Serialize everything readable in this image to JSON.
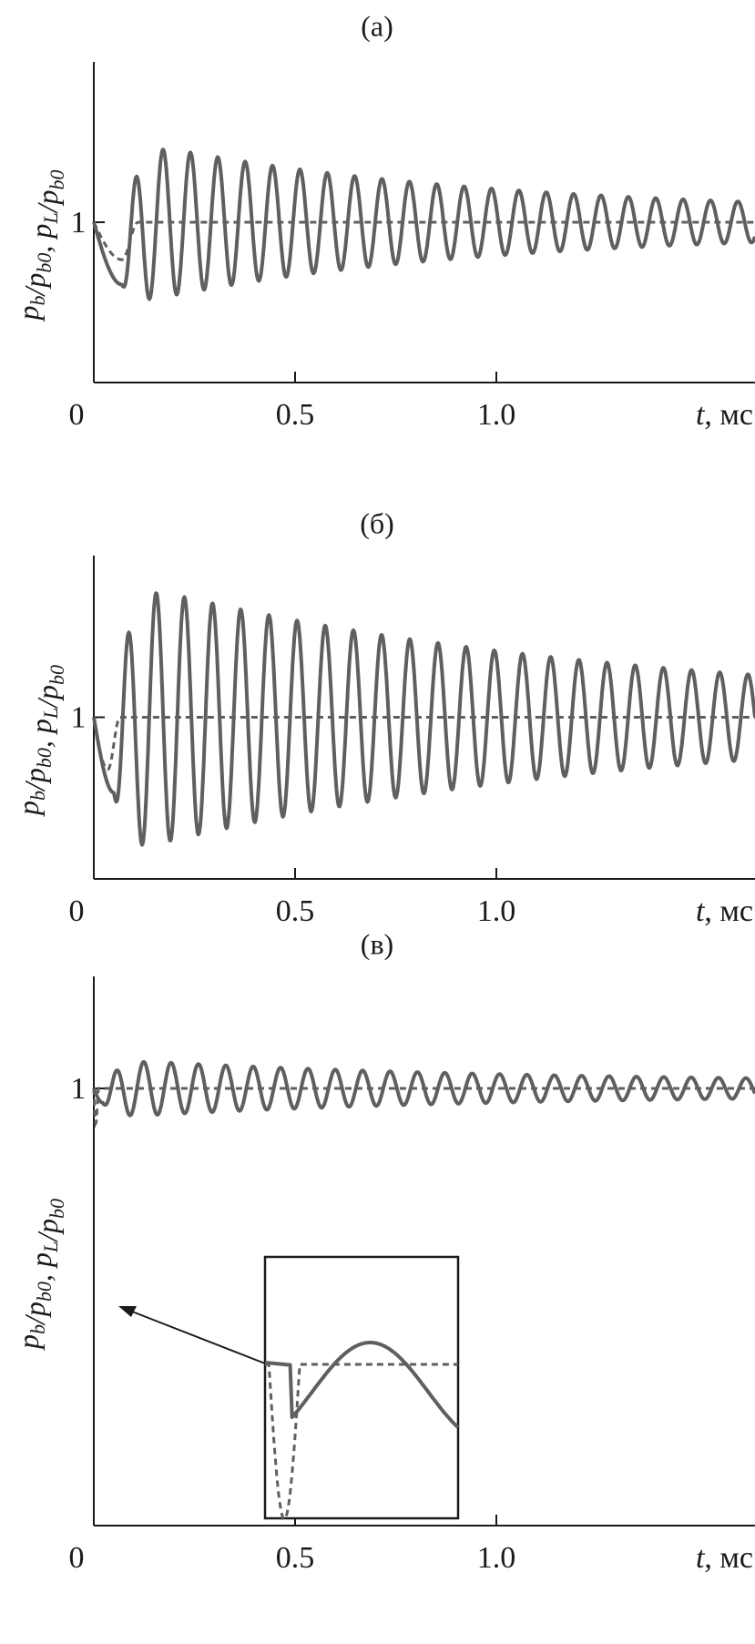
{
  "chart_data": [
    {
      "panel": "(а)",
      "type": "line",
      "xlabel_var": "t",
      "xlabel_unit": ", мс",
      "ylabel": "p_b/p_b0, p_L/p_b0",
      "xlim": [
        0,
        1.42
      ],
      "ylim": [
        0.1,
        1.9
      ],
      "x_ticks": [
        "0",
        "0.5",
        "1.0"
      ],
      "x_tick_values": [
        0,
        0.5,
        1.0
      ],
      "y_ticks": [
        "1"
      ],
      "y_tick_values": [
        1
      ],
      "series": [
        {
          "style": "solid",
          "t0": 0,
          "dip_time": 0.07,
          "dip_value": 0.65,
          "first_peak": 1.46,
          "period": 0.068,
          "decay": 1.2,
          "amp0": 0.42
        },
        {
          "style": "dashed",
          "dip_time": 0.07,
          "dip_value": 0.79,
          "settle_time": 0.11,
          "value_after": 1.0
        }
      ]
    },
    {
      "panel": "(б)",
      "type": "line",
      "xlabel_var": "t",
      "xlabel_unit": ", мс",
      "ylabel": "p_b/p_b0, p_L/p_b0",
      "xlim": [
        0,
        1.42
      ],
      "ylim": [
        0.1,
        1.9
      ],
      "x_ticks": [
        "0",
        "0.5",
        "1.0"
      ],
      "x_tick_values": [
        0,
        0.5,
        1.0
      ],
      "y_ticks": [
        "1"
      ],
      "y_tick_values": [
        1
      ],
      "series": [
        {
          "style": "solid",
          "dip_time": 0.05,
          "dip_value": 0.58,
          "first_peak": 1.71,
          "period": 0.07,
          "decay": 0.85,
          "amp0": 0.72
        },
        {
          "style": "dashed",
          "dip_time": 0.035,
          "dip_value": 0.71,
          "settle_time": 0.065,
          "value_after": 1.0
        }
      ]
    },
    {
      "panel": "(в)",
      "type": "line",
      "xlabel_var": "t",
      "xlabel_unit": ", мс",
      "ylabel": "p_b/p_b0, p_L/p_b0",
      "xlim": [
        0,
        1.42
      ],
      "ylim": [
        0.1,
        1.9
      ],
      "x_ticks": [
        "0",
        "0.5",
        "1.0"
      ],
      "x_tick_values": [
        0,
        0.5,
        1.0
      ],
      "y_ticks": [
        "1"
      ],
      "y_tick_values": [
        1
      ],
      "series": [
        {
          "style": "solid",
          "dip_time": 0.022,
          "dip_value": 0.88,
          "first_peak": 1.19,
          "period": 0.068,
          "decay": 1.05,
          "amp0": 0.2
        },
        {
          "style": "dashed",
          "dip_time": 0.005,
          "dip_value": 0.7,
          "settle_time": 0.012,
          "value_after": 1.0
        }
      ],
      "inset": {
        "note": "magnified view of the initial transient"
      }
    }
  ]
}
